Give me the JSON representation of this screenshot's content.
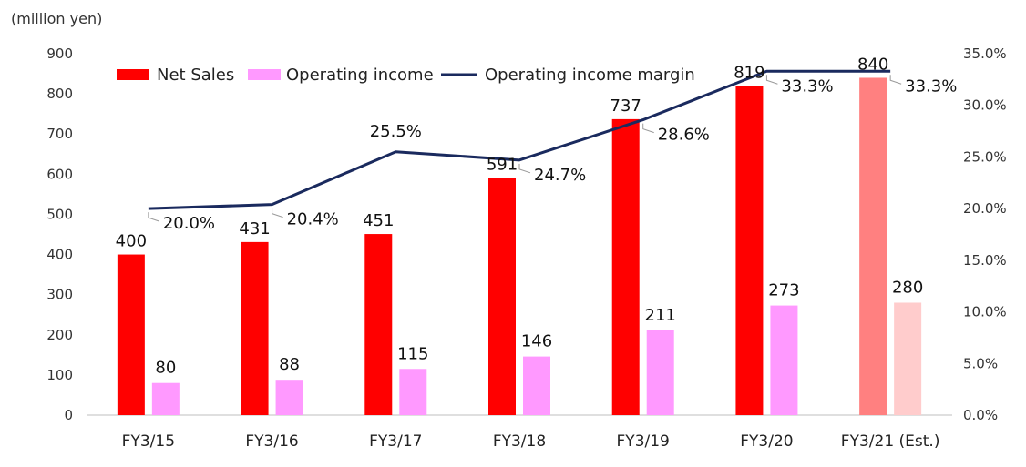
{
  "chart_data": {
    "type": "bar",
    "unit_label": "(million yen)",
    "categories": [
      "FY3/15",
      "FY3/16",
      "FY3/17",
      "FY3/18",
      "FY3/19",
      "FY3/20",
      "FY3/21 (Est.)"
    ],
    "series": [
      {
        "name": "Net Sales",
        "type": "bar",
        "axis": "left",
        "color": "#ff0000",
        "estimate_color": "#ff8080",
        "values": [
          400,
          431,
          451,
          591,
          737,
          819,
          840
        ],
        "labels": [
          "400",
          "431",
          "451",
          "591",
          "737",
          "819",
          "840"
        ]
      },
      {
        "name": "Operating income",
        "type": "bar",
        "axis": "left",
        "color": "#ff99ff",
        "estimate_color": "#ffcccc",
        "values": [
          80,
          88,
          115,
          146,
          211,
          273,
          280
        ],
        "labels": [
          "80",
          "88",
          "115",
          "146",
          "211",
          "273",
          "280"
        ]
      },
      {
        "name": "Operating income margin",
        "type": "line",
        "axis": "right",
        "color": "#1a2a5e",
        "values": [
          20.0,
          20.4,
          25.5,
          24.7,
          28.6,
          33.3,
          33.3
        ],
        "labels": [
          "20.0%",
          "20.4%",
          "25.5%",
          "24.7%",
          "28.6%",
          "33.3%",
          "33.3%"
        ]
      }
    ],
    "estimate_index": 6,
    "ylim": [
      0,
      900
    ],
    "yticks": [
      "0",
      "100",
      "200",
      "300",
      "400",
      "500",
      "600",
      "700",
      "800",
      "900"
    ],
    "y2lim": [
      0,
      35
    ],
    "y2ticks": [
      "0.0%",
      "5.0%",
      "10.0%",
      "15.0%",
      "20.0%",
      "25.0%",
      "30.0%",
      "35.0%"
    ],
    "grid": false,
    "legend_position": "top-left"
  }
}
